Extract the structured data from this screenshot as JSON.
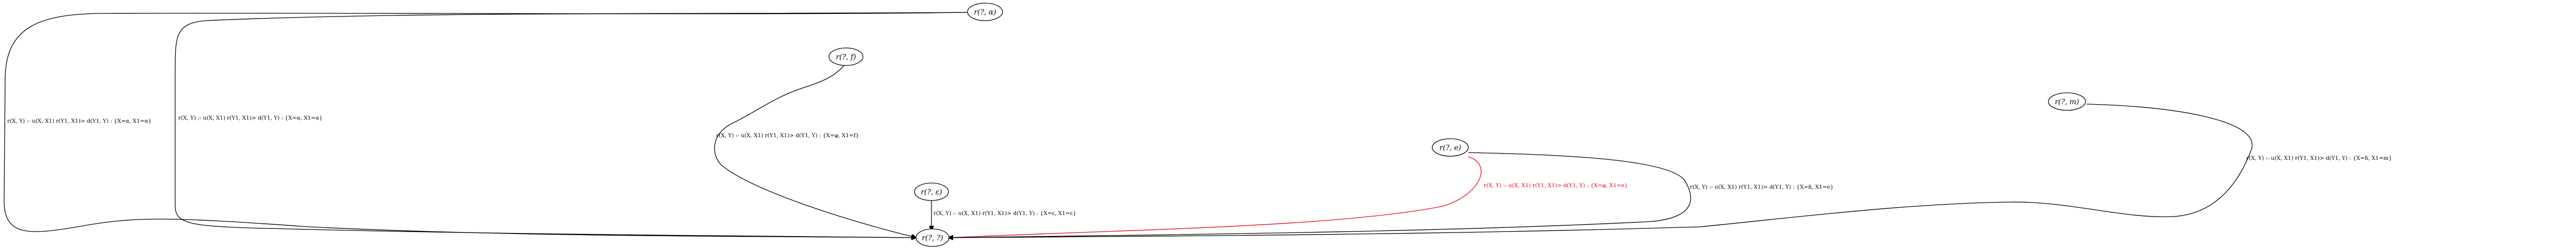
{
  "diagram": {
    "nodes": {
      "top_right_node": "r(?, α)",
      "upper_mid_node": "r(?, f)",
      "right_node": "r(?, m)",
      "center_right_node": "r(?, e)",
      "lower_mid_node": "r(?, ε)",
      "target_node": "r(?, ?)"
    },
    "edges": [
      {
        "from": "top_right_node",
        "label": "r(X, Y) :- u(X, X1) r(Y1, X1)> d(Y1, Y) : {X=α, X1=α}",
        "color": "#000000"
      },
      {
        "from": "top_right_node",
        "label": "r(X, Y) :- u(X, X1) r(Y1, X1)> d(Y1, Y) : {X=α, X1=α}",
        "color": "#000000"
      },
      {
        "from": "upper_mid_node",
        "label": "r(X, Y) :- u(X, X1) r(Y1, X1)> d(Y1, Y) : {X=φ, X1=f}",
        "color": "#000000"
      },
      {
        "from": "lower_mid_node",
        "label": "r(X, Y) :- u(X, X1) r(Y1, X1)> d(Y1, Y) : {X=ε, X1=ε}",
        "color": "#000000"
      },
      {
        "from": "center_right_node",
        "label": "r(X, Y) :- u(X, X1) r(Y1, X1)> d(Y1, Y) : {X=φ, X1=e}",
        "color": "#e8001c"
      },
      {
        "from": "center_right_node",
        "label": "r(X, Y) :- u(X, X1) r(Y1, X1)> d(Y1, Y) : {X=ñ, X1=e}",
        "color": "#000000"
      },
      {
        "from": "right_node",
        "label": "r(X, Y) :- u(X, X1) r(Y1, X1)> d(Y1, Y) : {X=ñ, X1=m}",
        "color": "#000000"
      }
    ]
  }
}
